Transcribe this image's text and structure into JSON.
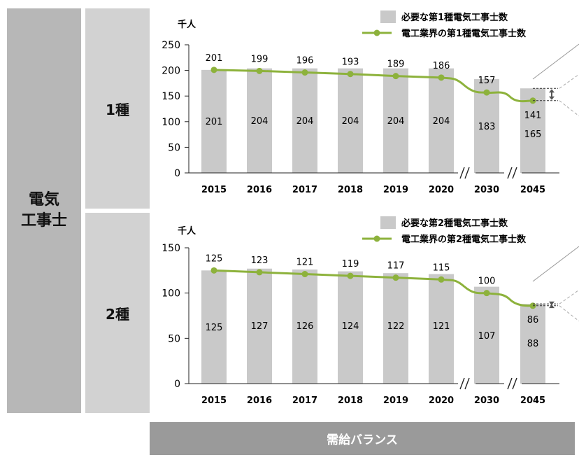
{
  "labels": {
    "row_header": [
      "電気",
      "工事士"
    ],
    "row1": "1種",
    "row2": "2種",
    "footer": "需給バランス"
  },
  "colors": {
    "bar": "#c9c9c9",
    "line": "#8db23c",
    "dashed": "#aaaaaa"
  },
  "chart_data": [
    {
      "type": "bar",
      "unit_label": "千人",
      "categories": [
        "2015",
        "2016",
        "2017",
        "2018",
        "2019",
        "2020",
        "2030",
        "2045"
      ],
      "ylim": [
        0,
        250
      ],
      "yticks": [
        0,
        50,
        100,
        150,
        200,
        250
      ],
      "axis_breaks_after": [
        "2020",
        "2030"
      ],
      "series": [
        {
          "name": "必要な第1種電気工事士数",
          "kind": "bar",
          "values": [
            201,
            204,
            204,
            204,
            204,
            204,
            183,
            165
          ]
        },
        {
          "name": "電工業界の第1種電気工事士数",
          "kind": "line",
          "values": [
            201,
            199,
            196,
            193,
            189,
            186,
            157,
            141
          ]
        }
      ]
    },
    {
      "type": "bar",
      "unit_label": "千人",
      "categories": [
        "2015",
        "2016",
        "2017",
        "2018",
        "2019",
        "2020",
        "2030",
        "2045"
      ],
      "ylim": [
        0,
        150
      ],
      "yticks": [
        0,
        50,
        100,
        150
      ],
      "axis_breaks_after": [
        "2020",
        "2030"
      ],
      "series": [
        {
          "name": "必要な第2種電気工事士数",
          "kind": "bar",
          "values": [
            125,
            127,
            126,
            124,
            122,
            121,
            107,
            88
          ]
        },
        {
          "name": "電工業界の第2種電気工事士数",
          "kind": "line",
          "values": [
            125,
            123,
            121,
            119,
            117,
            115,
            100,
            86
          ]
        }
      ]
    }
  ]
}
